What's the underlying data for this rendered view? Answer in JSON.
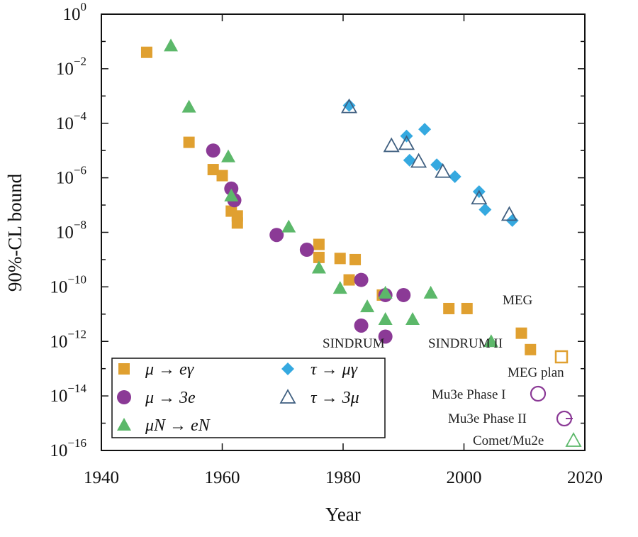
{
  "chart_data": {
    "type": "scatter",
    "xlabel": "Year",
    "ylabel": "90%-CL bound",
    "xlim": [
      1940,
      2020
    ],
    "ylim_log10": [
      -16,
      0
    ],
    "y_scale": "log",
    "x_ticks": [
      "1940",
      "1960",
      "1980",
      "2000",
      "2020"
    ],
    "y_ticks": [
      {
        "base": "10",
        "exp": "0",
        "value": 0
      },
      {
        "base": "10",
        "exp": "−2",
        "value": -2
      },
      {
        "base": "10",
        "exp": "−4",
        "value": -4
      },
      {
        "base": "10",
        "exp": "−6",
        "value": -6
      },
      {
        "base": "10",
        "exp": "−8",
        "value": -8
      },
      {
        "base": "10",
        "exp": "−10",
        "value": -10
      },
      {
        "base": "10",
        "exp": "−12",
        "value": -12
      },
      {
        "base": "10",
        "exp": "−14",
        "value": -14
      },
      {
        "base": "10",
        "exp": "−16",
        "value": -16
      }
    ],
    "grid": false,
    "legend_position": "bottom-left",
    "series": [
      {
        "name": "μ → eγ",
        "marker": "square-filled",
        "color": "#E0A030",
        "points": [
          {
            "x": 1947.5,
            "y": 0.04
          },
          {
            "x": 1954.5,
            "y": 2e-05
          },
          {
            "x": 1958.5,
            "y": 2e-06
          },
          {
            "x": 1960,
            "y": 1.2e-06
          },
          {
            "x": 1961.5,
            "y": 6e-08
          },
          {
            "x": 1962.5,
            "y": 4e-08
          },
          {
            "x": 1962.5,
            "y": 2.2e-08
          },
          {
            "x": 1976,
            "y": 3.6e-09
          },
          {
            "x": 1976,
            "y": 1.2e-09
          },
          {
            "x": 1979.5,
            "y": 1.1e-09
          },
          {
            "x": 1981,
            "y": 1.8e-10
          },
          {
            "x": 1982,
            "y": 1e-09
          },
          {
            "x": 1986.5,
            "y": 5e-11
          },
          {
            "x": 1997.5,
            "y": 1.6e-11
          },
          {
            "x": 2000.5,
            "y": 1.6e-11
          },
          {
            "x": 2009.5,
            "y": 2e-12
          },
          {
            "x": 2011,
            "y": 5e-13
          }
        ]
      },
      {
        "name": "μ → 3e",
        "marker": "circle-filled",
        "color": "#8B3A96",
        "points": [
          {
            "x": 1958.5,
            "y": 1e-05
          },
          {
            "x": 1961.5,
            "y": 4e-07
          },
          {
            "x": 1962,
            "y": 1.5e-07
          },
          {
            "x": 1969,
            "y": 8e-09
          },
          {
            "x": 1974,
            "y": 2.3e-09
          },
          {
            "x": 1983,
            "y": 1.8e-10
          },
          {
            "x": 1983,
            "y": 3.8e-12
          },
          {
            "x": 1987,
            "y": 5e-11
          },
          {
            "x": 1987,
            "y": 1.5e-12
          },
          {
            "x": 1990,
            "y": 5e-11
          }
        ]
      },
      {
        "name": "μN → eN",
        "marker": "triangle-filled",
        "color": "#5CB86A",
        "points": [
          {
            "x": 1951.5,
            "y": 0.07
          },
          {
            "x": 1954.5,
            "y": 0.0004
          },
          {
            "x": 1961,
            "y": 6e-06
          },
          {
            "x": 1961.5,
            "y": 2.2e-07
          },
          {
            "x": 1971,
            "y": 1.6e-08
          },
          {
            "x": 1976,
            "y": 5e-10
          },
          {
            "x": 1979.5,
            "y": 9e-11
          },
          {
            "x": 1984,
            "y": 1.9e-11
          },
          {
            "x": 1987,
            "y": 6e-11
          },
          {
            "x": 1987,
            "y": 6.5e-12
          },
          {
            "x": 1991.5,
            "y": 6.5e-12
          },
          {
            "x": 1994.5,
            "y": 6e-11
          },
          {
            "x": 2004.5,
            "y": 1e-12
          }
        ]
      },
      {
        "name": "τ → μγ",
        "marker": "diamond-filled",
        "color": "#35A9E0",
        "points": [
          {
            "x": 1981,
            "y": 0.00045
          },
          {
            "x": 1990.5,
            "y": 3.4e-05
          },
          {
            "x": 1993.5,
            "y": 6e-05
          },
          {
            "x": 1991,
            "y": 4.4e-06
          },
          {
            "x": 1995.5,
            "y": 3e-06
          },
          {
            "x": 1998.5,
            "y": 1.1e-06
          },
          {
            "x": 2002.5,
            "y": 3.1e-07
          },
          {
            "x": 2003.5,
            "y": 6.8e-08
          },
          {
            "x": 2008,
            "y": 2.7e-08
          }
        ]
      },
      {
        "name": "τ → 3μ",
        "marker": "triangle-open",
        "color": "#3F5F80",
        "points": [
          {
            "x": 1981,
            "y": 0.0004
          },
          {
            "x": 1988,
            "y": 1.5e-05
          },
          {
            "x": 1990.5,
            "y": 1.8e-05
          },
          {
            "x": 1992.5,
            "y": 4e-06
          },
          {
            "x": 1996.5,
            "y": 1.7e-06
          },
          {
            "x": 2002.5,
            "y": 1.8e-07
          },
          {
            "x": 2007.5,
            "y": 4.5e-08
          }
        ]
      }
    ],
    "projections": [
      {
        "label": "MEG plan",
        "marker": "square-open",
        "color": "#E0A030",
        "x": 2016.5,
        "y": 6e-14
      },
      {
        "label": "Mu3e Phase I",
        "marker": "circle-open",
        "color": "#8B3A96",
        "x": 2013.5,
        "y": 1e-15
      },
      {
        "label": "Mu3e Phase II",
        "marker": "circle-open",
        "color": "#8B3A96",
        "x": 2017,
        "y": 1e-16
      },
      {
        "label": "Comet/Mu2e",
        "marker": "triangle-open",
        "color": "#5CB86A",
        "x": 2019,
        "y": 1e-17
      }
    ],
    "annotations": [
      "MEG",
      "SINDRUM",
      "SINDRUM II"
    ]
  }
}
